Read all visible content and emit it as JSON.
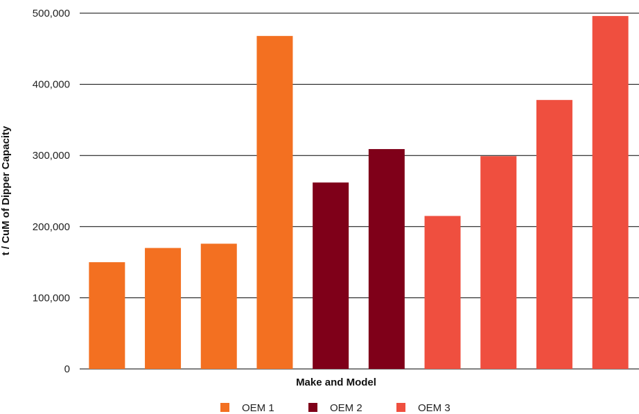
{
  "chart_data": {
    "type": "bar",
    "xlabel": "Make and Model",
    "ylabel": "t / CuM of Dipper Capacity",
    "ylim": [
      0,
      500000
    ],
    "yticks": [
      0,
      100000,
      200000,
      300000,
      400000,
      500000
    ],
    "ytick_labels": [
      "0",
      "100,000",
      "200,000",
      "300,000",
      "400,000",
      "500,000"
    ],
    "grid": true,
    "legend_position": "bottom",
    "categories": [
      "",
      "",
      "",
      "",
      "",
      "",
      "",
      "",
      "",
      ""
    ],
    "bars": [
      {
        "value": 150000,
        "series": "OEM 1"
      },
      {
        "value": 170000,
        "series": "OEM 1"
      },
      {
        "value": 176000,
        "series": "OEM 1"
      },
      {
        "value": 468000,
        "series": "OEM 1"
      },
      {
        "value": 262000,
        "series": "OEM 2"
      },
      {
        "value": 309000,
        "series": "OEM 2"
      },
      {
        "value": 215000,
        "series": "OEM 3"
      },
      {
        "value": 299000,
        "series": "OEM 3"
      },
      {
        "value": 378000,
        "series": "OEM 3"
      },
      {
        "value": 496000,
        "series": "OEM 3"
      }
    ],
    "series": [
      {
        "name": "OEM 1",
        "color": "#f37021"
      },
      {
        "name": "OEM 2",
        "color": "#7f0019"
      },
      {
        "name": "OEM 3",
        "color": "#ef4f3f"
      }
    ]
  }
}
